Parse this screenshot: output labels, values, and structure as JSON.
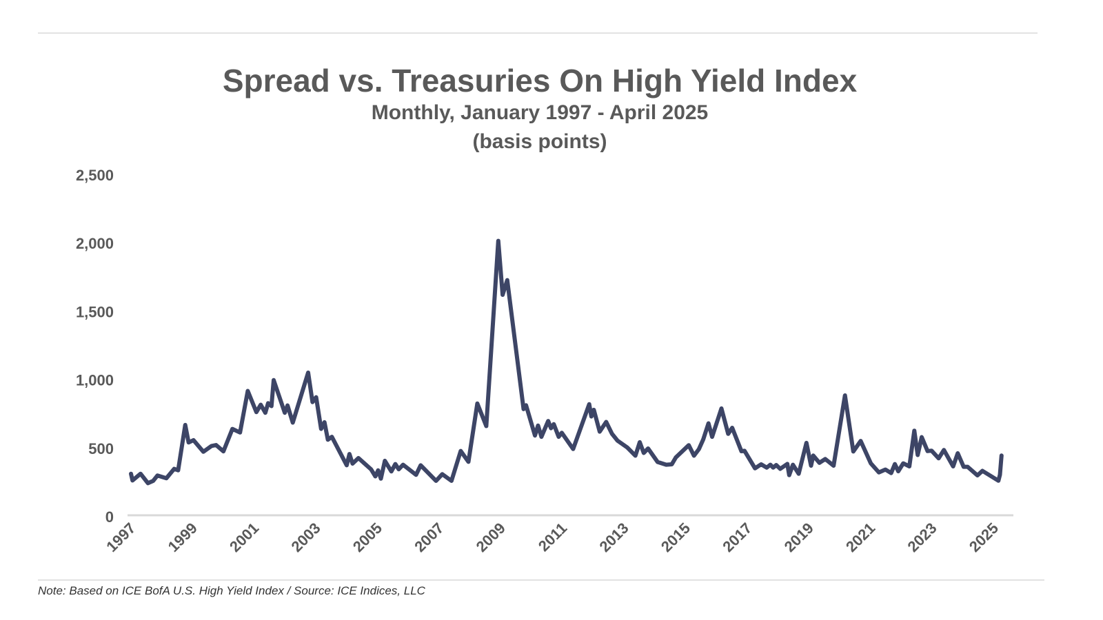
{
  "chart_data": {
    "type": "line",
    "title": "Spread vs. Treasuries On High Yield Index",
    "subtitle": "Monthly, January 1997 - April 2025",
    "units_label": "(basis points)",
    "xlabel": "",
    "ylabel": "",
    "xlim": [
      1997,
      2025.3
    ],
    "ylim": [
      0,
      2500
    ],
    "grid": false,
    "legend": "none",
    "line_color": "#3d4566",
    "x_tick_labels": [
      "1997",
      "1999",
      "2001",
      "2003",
      "2005",
      "2007",
      "2009",
      "2011",
      "2013",
      "2015",
      "2017",
      "2019",
      "2021",
      "2023",
      "2025"
    ],
    "x_ticks": [
      1997,
      1999,
      2001,
      2003,
      2005,
      2007,
      2009,
      2011,
      2013,
      2015,
      2017,
      2019,
      2021,
      2023,
      2025
    ],
    "y_tick_labels": [
      "0",
      "500",
      "1,000",
      "1,500",
      "2,000",
      "2,500"
    ],
    "y_ticks": [
      0,
      500,
      1000,
      1500,
      2000,
      2500
    ],
    "series": [
      {
        "name": "Spread vs. Treasuries (bp)",
        "points": [
          [
            1997.0,
            314
          ],
          [
            1997.05,
            265
          ],
          [
            1997.31,
            314
          ],
          [
            1997.55,
            245
          ],
          [
            1997.72,
            262
          ],
          [
            1997.86,
            301
          ],
          [
            1998.15,
            281
          ],
          [
            1998.4,
            350
          ],
          [
            1998.53,
            339
          ],
          [
            1998.76,
            671
          ],
          [
            1998.87,
            543
          ],
          [
            1999.03,
            560
          ],
          [
            1999.35,
            475
          ],
          [
            1999.61,
            517
          ],
          [
            1999.76,
            524
          ],
          [
            2000.0,
            478
          ],
          [
            2000.29,
            642
          ],
          [
            2000.54,
            616
          ],
          [
            2000.79,
            920
          ],
          [
            2001.07,
            765
          ],
          [
            2001.21,
            819
          ],
          [
            2001.36,
            760
          ],
          [
            2001.45,
            830
          ],
          [
            2001.56,
            809
          ],
          [
            2001.63,
            999
          ],
          [
            2001.99,
            760
          ],
          [
            2002.08,
            814
          ],
          [
            2002.25,
            688
          ],
          [
            2002.75,
            1054
          ],
          [
            2002.89,
            838
          ],
          [
            2003.01,
            874
          ],
          [
            2003.17,
            642
          ],
          [
            2003.28,
            691
          ],
          [
            2003.39,
            563
          ],
          [
            2003.52,
            584
          ],
          [
            2004.0,
            376
          ],
          [
            2004.09,
            458
          ],
          [
            2004.19,
            388
          ],
          [
            2004.38,
            429
          ],
          [
            2004.79,
            347
          ],
          [
            2004.93,
            295
          ],
          [
            2005.02,
            339
          ],
          [
            2005.11,
            278
          ],
          [
            2005.24,
            409
          ],
          [
            2005.45,
            331
          ],
          [
            2005.58,
            385
          ],
          [
            2005.69,
            347
          ],
          [
            2005.83,
            380
          ],
          [
            2006.25,
            306
          ],
          [
            2006.4,
            376
          ],
          [
            2006.9,
            262
          ],
          [
            2007.1,
            311
          ],
          [
            2007.4,
            262
          ],
          [
            2007.7,
            481
          ],
          [
            2007.95,
            401
          ],
          [
            2008.24,
            828
          ],
          [
            2008.53,
            663
          ],
          [
            2008.92,
            2018
          ],
          [
            2009.06,
            1623
          ],
          [
            2009.21,
            1731
          ],
          [
            2009.74,
            787
          ],
          [
            2009.82,
            815
          ],
          [
            2010.11,
            594
          ],
          [
            2010.21,
            667
          ],
          [
            2010.32,
            584
          ],
          [
            2010.54,
            700
          ],
          [
            2010.63,
            647
          ],
          [
            2010.72,
            677
          ],
          [
            2010.88,
            584
          ],
          [
            2010.98,
            614
          ],
          [
            2011.35,
            495
          ],
          [
            2011.87,
            823
          ],
          [
            2011.94,
            733
          ],
          [
            2012.02,
            782
          ],
          [
            2012.21,
            622
          ],
          [
            2012.42,
            693
          ],
          [
            2012.61,
            606
          ],
          [
            2012.79,
            556
          ],
          [
            2013.1,
            507
          ],
          [
            2013.37,
            446
          ],
          [
            2013.51,
            545
          ],
          [
            2013.64,
            466
          ],
          [
            2013.78,
            499
          ],
          [
            2014.09,
            400
          ],
          [
            2014.37,
            380
          ],
          [
            2014.55,
            383
          ],
          [
            2014.68,
            433
          ],
          [
            2015.1,
            523
          ],
          [
            2015.27,
            446
          ],
          [
            2015.43,
            494
          ],
          [
            2015.57,
            565
          ],
          [
            2015.74,
            683
          ],
          [
            2015.86,
            584
          ],
          [
            2016.16,
            792
          ],
          [
            2016.38,
            606
          ],
          [
            2016.51,
            650
          ],
          [
            2016.81,
            479
          ],
          [
            2016.91,
            482
          ],
          [
            2017.25,
            354
          ],
          [
            2017.45,
            383
          ],
          [
            2017.63,
            359
          ],
          [
            2017.75,
            380
          ],
          [
            2017.84,
            359
          ],
          [
            2017.94,
            378
          ],
          [
            2018.07,
            350
          ],
          [
            2018.3,
            386
          ],
          [
            2018.36,
            304
          ],
          [
            2018.48,
            380
          ],
          [
            2018.67,
            314
          ],
          [
            2018.92,
            540
          ],
          [
            2019.07,
            373
          ],
          [
            2019.14,
            447
          ],
          [
            2019.34,
            394
          ],
          [
            2019.53,
            422
          ],
          [
            2019.8,
            373
          ],
          [
            2020.17,
            887
          ],
          [
            2020.44,
            477
          ],
          [
            2020.68,
            554
          ],
          [
            2021.01,
            390
          ],
          [
            2021.27,
            324
          ],
          [
            2021.48,
            345
          ],
          [
            2021.67,
            319
          ],
          [
            2021.79,
            385
          ],
          [
            2021.9,
            332
          ],
          [
            2022.06,
            390
          ],
          [
            2022.26,
            368
          ],
          [
            2022.42,
            629
          ],
          [
            2022.53,
            451
          ],
          [
            2022.66,
            582
          ],
          [
            2022.85,
            480
          ],
          [
            2022.98,
            483
          ],
          [
            2023.21,
            427
          ],
          [
            2023.38,
            488
          ],
          [
            2023.68,
            368
          ],
          [
            2023.83,
            464
          ],
          [
            2024.02,
            365
          ],
          [
            2024.15,
            365
          ],
          [
            2024.47,
            302
          ],
          [
            2024.63,
            335
          ],
          [
            2025.15,
            263
          ],
          [
            2025.2,
            307
          ],
          [
            2025.25,
            447
          ]
        ]
      }
    ],
    "note": "Note: Based on ICE BofA U.S. High Yield Index /  Source: ICE Indices, LLC"
  }
}
